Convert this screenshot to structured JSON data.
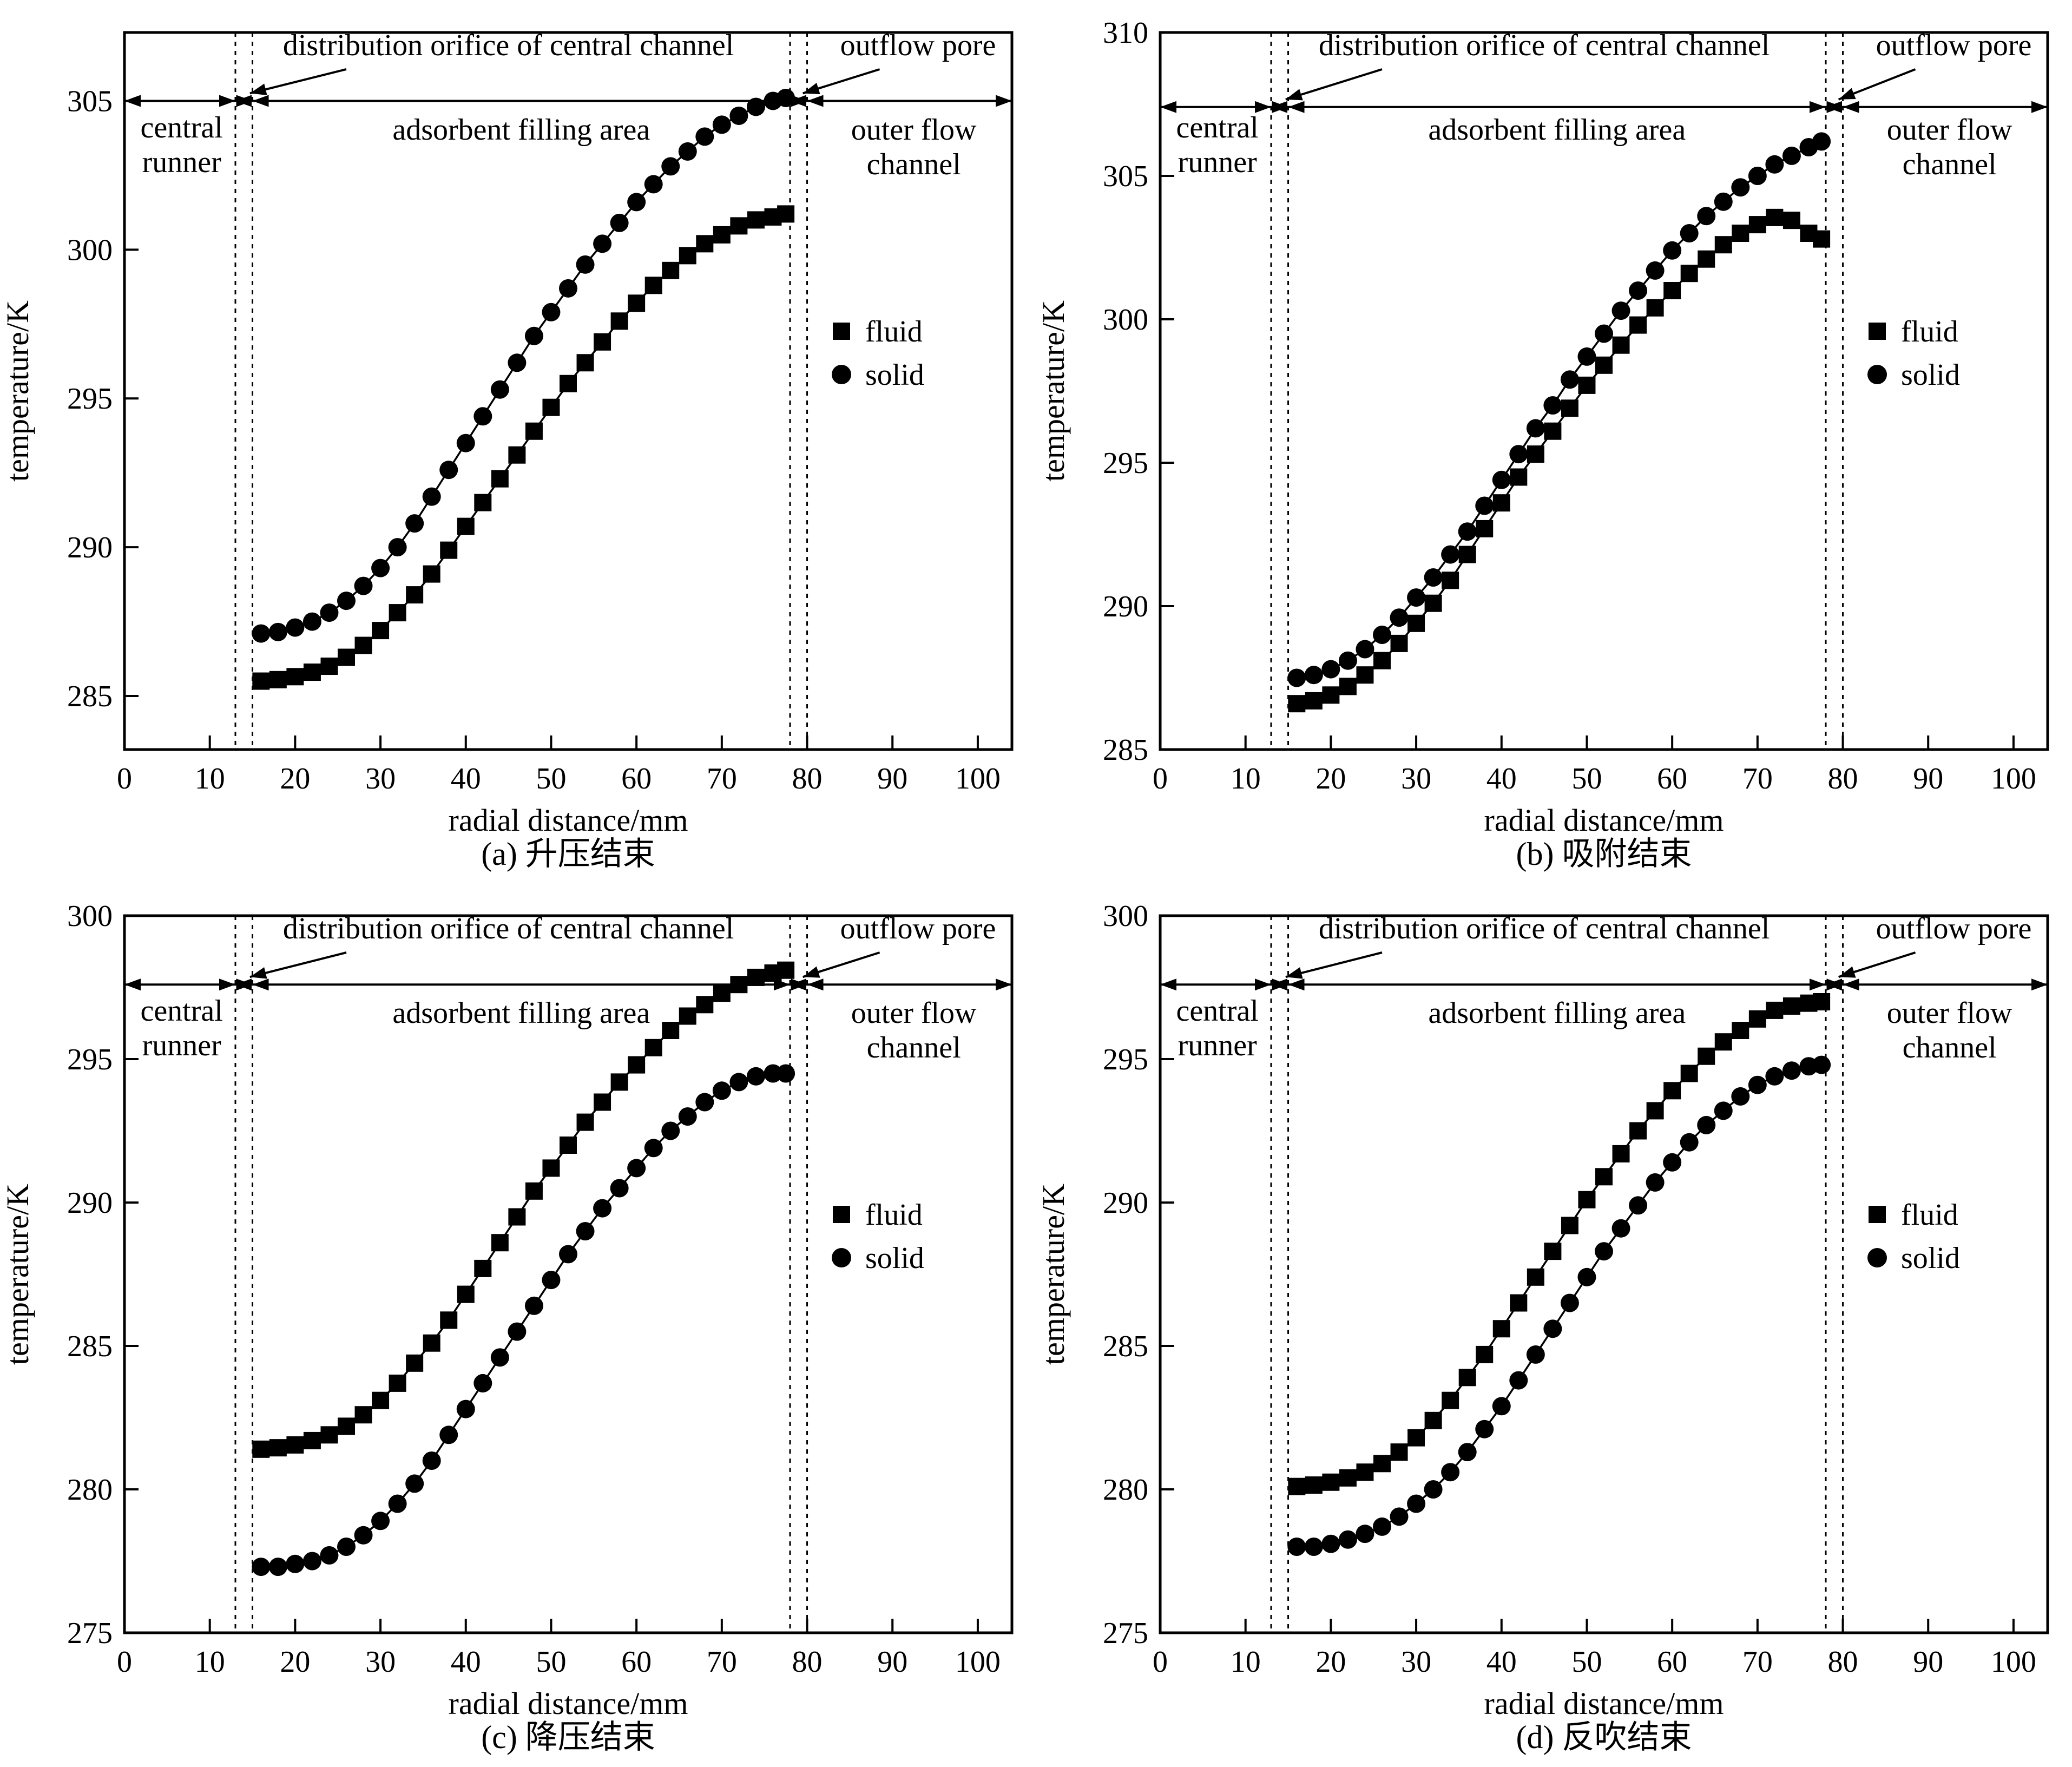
{
  "figure": {
    "x_axis_label": "radial distance/mm",
    "y_axis_label": "temperature/K",
    "legend_items": [
      {
        "label": "fluid",
        "marker": "square"
      },
      {
        "label": "solid",
        "marker": "circle"
      }
    ],
    "regions": {
      "central_runner_lines": [
        "central",
        "runner"
      ],
      "adsorbent_label": "adsorbent filling area",
      "outer_flow_lines": [
        "outer flow",
        "channel"
      ],
      "distribution_orifice_label": "distribution orifice of central channel",
      "outflow_pore_label": "outflow pore",
      "dotted_lines_mm": [
        13,
        15,
        78,
        80
      ]
    },
    "line_color": "#000000",
    "background_color": "#ffffff"
  },
  "chart_data": [
    {
      "type": "line",
      "title": "(a) 升压结束",
      "xlabel": "radial distance/mm",
      "ylabel": "temperature/K",
      "xlim": [
        0,
        104
      ],
      "ylim": [
        283.2,
        307.3
      ],
      "xticks": [
        0,
        10,
        20,
        30,
        40,
        50,
        60,
        70,
        80,
        90,
        100
      ],
      "yticks": [
        285,
        290,
        295,
        300,
        305
      ],
      "annotation_line_y": 305,
      "legend_position": "right-middle",
      "grid": false,
      "x": [
        16,
        18,
        20,
        22,
        24,
        26,
        28,
        30,
        32,
        34,
        36,
        38,
        40,
        42,
        44,
        46,
        48,
        50,
        52,
        54,
        56,
        58,
        60,
        62,
        64,
        66,
        68,
        70,
        72,
        74,
        76,
        77.5
      ],
      "series": [
        {
          "name": "fluid",
          "marker": "square",
          "values": [
            285.5,
            285.55,
            285.65,
            285.8,
            286.0,
            286.3,
            286.7,
            287.2,
            287.8,
            288.4,
            289.1,
            289.9,
            290.7,
            291.5,
            292.3,
            293.1,
            293.9,
            294.7,
            295.5,
            296.2,
            296.9,
            297.6,
            298.2,
            298.8,
            299.3,
            299.8,
            300.2,
            300.5,
            300.8,
            301.0,
            301.1,
            301.2
          ]
        },
        {
          "name": "solid",
          "marker": "circle",
          "values": [
            287.1,
            287.15,
            287.3,
            287.5,
            287.8,
            288.2,
            288.7,
            289.3,
            290.0,
            290.8,
            291.7,
            292.6,
            293.5,
            294.4,
            295.3,
            296.2,
            297.1,
            297.9,
            298.7,
            299.5,
            300.2,
            300.9,
            301.6,
            302.2,
            302.8,
            303.3,
            303.8,
            304.2,
            304.5,
            304.8,
            305.0,
            305.1
          ]
        }
      ]
    },
    {
      "type": "line",
      "title": "(b) 吸附结束",
      "xlabel": "radial distance/mm",
      "ylabel": "temperature/K",
      "xlim": [
        0,
        104
      ],
      "ylim": [
        285,
        310
      ],
      "xticks": [
        0,
        10,
        20,
        30,
        40,
        50,
        60,
        70,
        80,
        90,
        100
      ],
      "yticks": [
        285,
        290,
        295,
        300,
        305,
        310
      ],
      "annotation_line_y": 307.4,
      "legend_position": "right-middle",
      "grid": false,
      "x": [
        16,
        18,
        20,
        22,
        24,
        26,
        28,
        30,
        32,
        34,
        36,
        38,
        40,
        42,
        44,
        46,
        48,
        50,
        52,
        54,
        56,
        58,
        60,
        62,
        64,
        66,
        68,
        70,
        72,
        74,
        76,
        77.5
      ],
      "series": [
        {
          "name": "fluid",
          "marker": "square",
          "values": [
            286.6,
            286.7,
            286.9,
            287.2,
            287.6,
            288.1,
            288.7,
            289.4,
            290.1,
            290.9,
            291.8,
            292.7,
            293.6,
            294.5,
            295.3,
            296.1,
            296.9,
            297.7,
            298.4,
            299.1,
            299.8,
            300.4,
            301.0,
            301.6,
            302.1,
            302.6,
            303.0,
            303.3,
            303.55,
            303.45,
            303.0,
            302.8
          ]
        },
        {
          "name": "solid",
          "marker": "circle",
          "values": [
            287.5,
            287.6,
            287.8,
            288.1,
            288.5,
            289.0,
            289.6,
            290.3,
            291.0,
            291.8,
            292.6,
            293.5,
            294.4,
            295.3,
            296.2,
            297.0,
            297.9,
            298.7,
            299.5,
            300.3,
            301.0,
            301.7,
            302.4,
            303.0,
            303.6,
            304.1,
            304.6,
            305.0,
            305.4,
            305.7,
            306.0,
            306.2
          ]
        }
      ]
    },
    {
      "type": "line",
      "title": "(c) 降压结束",
      "xlabel": "radial distance/mm",
      "ylabel": "temperature/K",
      "xlim": [
        0,
        104
      ],
      "ylim": [
        275,
        300
      ],
      "xticks": [
        0,
        10,
        20,
        30,
        40,
        50,
        60,
        70,
        80,
        90,
        100
      ],
      "yticks": [
        275,
        280,
        285,
        290,
        295,
        300
      ],
      "annotation_line_y": 297.6,
      "legend_position": "right-middle",
      "grid": false,
      "x": [
        16,
        18,
        20,
        22,
        24,
        26,
        28,
        30,
        32,
        34,
        36,
        38,
        40,
        42,
        44,
        46,
        48,
        50,
        52,
        54,
        56,
        58,
        60,
        62,
        64,
        66,
        68,
        70,
        72,
        74,
        76,
        77.5
      ],
      "series": [
        {
          "name": "fluid",
          "marker": "square",
          "values": [
            281.4,
            281.45,
            281.55,
            281.7,
            281.9,
            282.2,
            282.6,
            283.1,
            283.7,
            284.4,
            285.1,
            285.9,
            286.8,
            287.7,
            288.6,
            289.5,
            290.4,
            291.2,
            292.0,
            292.8,
            293.5,
            294.2,
            294.8,
            295.4,
            296.0,
            296.5,
            296.9,
            297.3,
            297.6,
            297.85,
            298.0,
            298.1
          ]
        },
        {
          "name": "solid",
          "marker": "circle",
          "values": [
            277.3,
            277.3,
            277.4,
            277.5,
            277.7,
            278.0,
            278.4,
            278.9,
            279.5,
            280.2,
            281.0,
            281.9,
            282.8,
            283.7,
            284.6,
            285.5,
            286.4,
            287.3,
            288.2,
            289.0,
            289.8,
            290.5,
            291.2,
            291.9,
            292.5,
            293.0,
            293.5,
            293.9,
            294.2,
            294.4,
            294.5,
            294.5
          ]
        }
      ]
    },
    {
      "type": "line",
      "title": "(d) 反吹结束",
      "xlabel": "radial distance/mm",
      "ylabel": "temperature/K",
      "xlim": [
        0,
        104
      ],
      "ylim": [
        275,
        300
      ],
      "xticks": [
        0,
        10,
        20,
        30,
        40,
        50,
        60,
        70,
        80,
        90,
        100
      ],
      "yticks": [
        275,
        280,
        285,
        290,
        295,
        300
      ],
      "annotation_line_y": 297.6,
      "legend_position": "right-middle",
      "grid": false,
      "x": [
        16,
        18,
        20,
        22,
        24,
        26,
        28,
        30,
        32,
        34,
        36,
        38,
        40,
        42,
        44,
        46,
        48,
        50,
        52,
        54,
        56,
        58,
        60,
        62,
        64,
        66,
        68,
        70,
        72,
        74,
        76,
        77.5
      ],
      "series": [
        {
          "name": "fluid",
          "marker": "square",
          "values": [
            280.1,
            280.15,
            280.25,
            280.4,
            280.6,
            280.9,
            281.3,
            281.8,
            282.4,
            283.1,
            283.9,
            284.7,
            285.6,
            286.5,
            287.4,
            288.3,
            289.2,
            290.1,
            290.9,
            291.7,
            292.5,
            293.2,
            293.9,
            294.5,
            295.1,
            295.6,
            296.0,
            296.4,
            296.7,
            296.85,
            296.95,
            297.0
          ]
        },
        {
          "name": "solid",
          "marker": "circle",
          "values": [
            278.0,
            278.0,
            278.1,
            278.25,
            278.45,
            278.7,
            279.05,
            279.5,
            280.0,
            280.6,
            281.3,
            282.1,
            282.9,
            283.8,
            284.7,
            285.6,
            286.5,
            287.4,
            288.3,
            289.1,
            289.9,
            290.7,
            291.4,
            292.1,
            292.7,
            293.2,
            293.7,
            294.1,
            294.4,
            294.6,
            294.75,
            294.8
          ]
        }
      ]
    }
  ]
}
